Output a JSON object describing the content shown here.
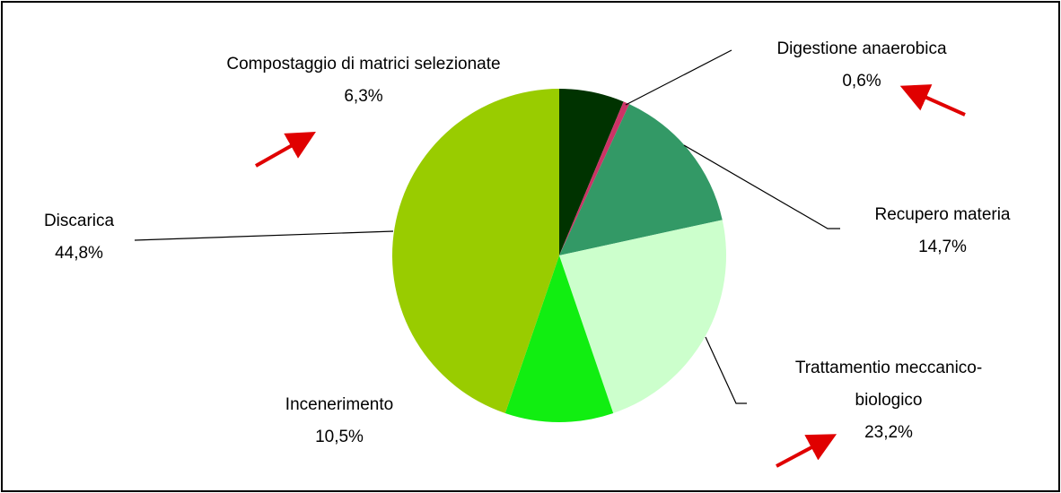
{
  "chart_data": {
    "type": "pie",
    "categories": [
      "Compostaggio di matrici selezionate",
      "Digestione anaerobica",
      "Recupero materia",
      "Trattamentio meccanico-biologico",
      "Incenerimento",
      "Discarica"
    ],
    "values": [
      6.3,
      0.6,
      14.7,
      23.2,
      10.5,
      44.8
    ],
    "value_labels": [
      "6,3%",
      "0,6%",
      "14,7%",
      "23,2%",
      "10,5%",
      "44,8%"
    ],
    "colors": [
      "#003300",
      "#cc3366",
      "#339966",
      "#ccffcc",
      "#11ee11",
      "#99cc00"
    ]
  }
}
